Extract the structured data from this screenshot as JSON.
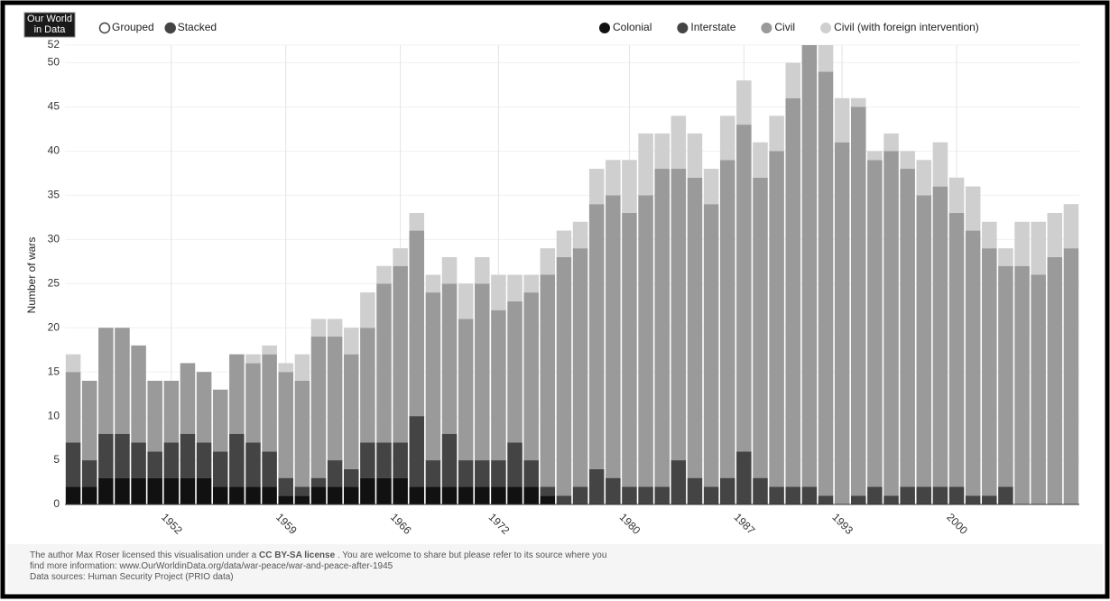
{
  "logo": [
    "Our World",
    "in Data"
  ],
  "controls": {
    "options": [
      "Grouped",
      "Stacked"
    ],
    "selected": 1
  },
  "chart_data": {
    "type": "bar",
    "stacked": true,
    "ylabel": "Number of wars",
    "x": [
      1946,
      1947,
      1948,
      1949,
      1950,
      1951,
      1952,
      1953,
      1954,
      1955,
      1956,
      1957,
      1958,
      1959,
      1960,
      1961,
      1962,
      1963,
      1964,
      1965,
      1966,
      1967,
      1968,
      1969,
      1970,
      1971,
      1972,
      1973,
      1974,
      1975,
      1976,
      1977,
      1978,
      1979,
      1980,
      1981,
      1982,
      1983,
      1984,
      1985,
      1986,
      1987,
      1988,
      1989,
      1990,
      1991,
      1992,
      1993,
      1994,
      1995,
      1996,
      1997,
      1998,
      1999,
      2000,
      2001,
      2002,
      2003,
      2004,
      2005,
      2006,
      2007
    ],
    "xlim": [
      1945.5,
      2007.5
    ],
    "xticks": [
      1952,
      1959,
      1966,
      1972,
      1980,
      1987,
      1993,
      2000
    ],
    "ylim": [
      0,
      52
    ],
    "yticks": [
      0,
      5,
      10,
      15,
      20,
      25,
      30,
      35,
      40,
      45,
      50,
      52
    ],
    "grid": true,
    "series": [
      {
        "name": "Colonial",
        "color": "#111111",
        "values": [
          2,
          2,
          3,
          3,
          3,
          3,
          3,
          3,
          3,
          2,
          2,
          2,
          2,
          1,
          1,
          2,
          2,
          2,
          3,
          3,
          3,
          2,
          2,
          2,
          2,
          2,
          2,
          2,
          2,
          1,
          0,
          0,
          0,
          0,
          0,
          0,
          0,
          0,
          0,
          0,
          0,
          0,
          0,
          0,
          0,
          0,
          0,
          0,
          0,
          0,
          0,
          0,
          0,
          0,
          0,
          0,
          0,
          0,
          0,
          0,
          0,
          0
        ]
      },
      {
        "name": "Interstate",
        "color": "#444444",
        "values": [
          5,
          3,
          5,
          5,
          4,
          3,
          4,
          5,
          4,
          4,
          6,
          5,
          4,
          2,
          1,
          1,
          3,
          2,
          4,
          4,
          4,
          8,
          3,
          6,
          3,
          3,
          3,
          5,
          3,
          1,
          1,
          2,
          4,
          3,
          2,
          2,
          2,
          5,
          3,
          2,
          3,
          6,
          3,
          2,
          2,
          2,
          1,
          0,
          1,
          2,
          1,
          2,
          2,
          2,
          2,
          1,
          1,
          2,
          0,
          0,
          0,
          0
        ]
      },
      {
        "name": "Civil",
        "color": "#9a9a9a",
        "values": [
          8,
          9,
          12,
          12,
          11,
          8,
          7,
          8,
          8,
          7,
          9,
          9,
          11,
          12,
          12,
          16,
          14,
          13,
          13,
          18,
          20,
          21,
          19,
          17,
          16,
          20,
          17,
          16,
          19,
          24,
          27,
          27,
          30,
          32,
          31,
          33,
          36,
          33,
          34,
          32,
          36,
          37,
          34,
          38,
          44,
          50,
          48,
          41,
          44,
          37,
          39,
          36,
          33,
          34,
          31,
          30,
          28,
          25,
          27,
          26,
          28,
          29
        ]
      },
      {
        "name": "Civil (with foreign intervention)",
        "color": "#cfcfcf",
        "values": [
          2,
          0,
          0,
          0,
          0,
          0,
          0,
          0,
          0,
          0,
          0,
          1,
          1,
          1,
          3,
          2,
          2,
          3,
          4,
          2,
          2,
          2,
          2,
          3,
          4,
          3,
          4,
          3,
          2,
          3,
          3,
          3,
          4,
          4,
          6,
          7,
          4,
          6,
          5,
          4,
          5,
          5,
          4,
          4,
          4,
          0,
          3,
          5,
          1,
          1,
          2,
          2,
          4,
          5,
          4,
          5,
          3,
          2,
          5,
          6,
          5,
          5
        ]
      }
    ]
  },
  "footer": {
    "lines": [
      [
        "The author Max Roser licensed this visualisation under a ",
        "CC BY-SA license",
        " . You are welcome to share but please refer to its source where you"
      ],
      [
        "find more information:  www.OurWorldinData.org/data/war-peace/war-and-peace-after-1945"
      ],
      [
        "Data sources: Human Security Project (PRIO data)"
      ]
    ]
  }
}
